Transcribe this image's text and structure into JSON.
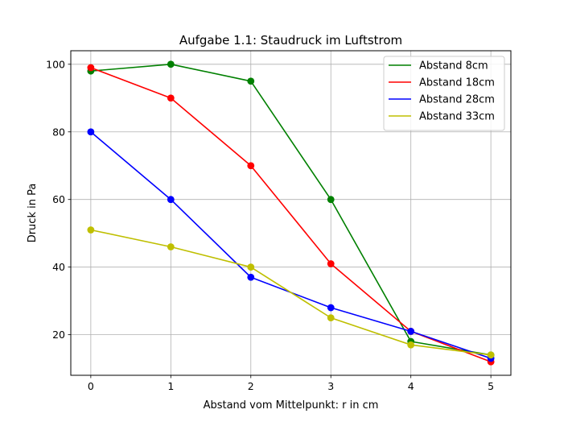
{
  "chart_data": {
    "type": "line",
    "title": "Aufgabe 1.1: Staudruck im Luftstrom",
    "xlabel": "Abstand vom Mittelpunkt: r in cm",
    "ylabel": "Druck in Pa",
    "x": [
      0,
      1,
      2,
      3,
      4,
      5
    ],
    "xlim": [
      -0.25,
      5.25
    ],
    "ylim": [
      8,
      104
    ],
    "xticks": [
      0,
      1,
      2,
      3,
      4,
      5
    ],
    "yticks": [
      20,
      40,
      60,
      80,
      100
    ],
    "grid": true,
    "legend_position": "top-right",
    "series": [
      {
        "name": "Abstand 8cm",
        "color": "#008000",
        "values": [
          98,
          100,
          95,
          60,
          18,
          14
        ]
      },
      {
        "name": "Abstand 18cm",
        "color": "#ff0000",
        "values": [
          99,
          90,
          70,
          41,
          21,
          12
        ]
      },
      {
        "name": "Abstand 28cm",
        "color": "#0000ff",
        "values": [
          80,
          60,
          37,
          28,
          21,
          13
        ]
      },
      {
        "name": "Abstand 33cm",
        "color": "#bfbf00",
        "values": [
          51,
          46,
          40,
          25,
          17,
          14
        ]
      }
    ]
  }
}
